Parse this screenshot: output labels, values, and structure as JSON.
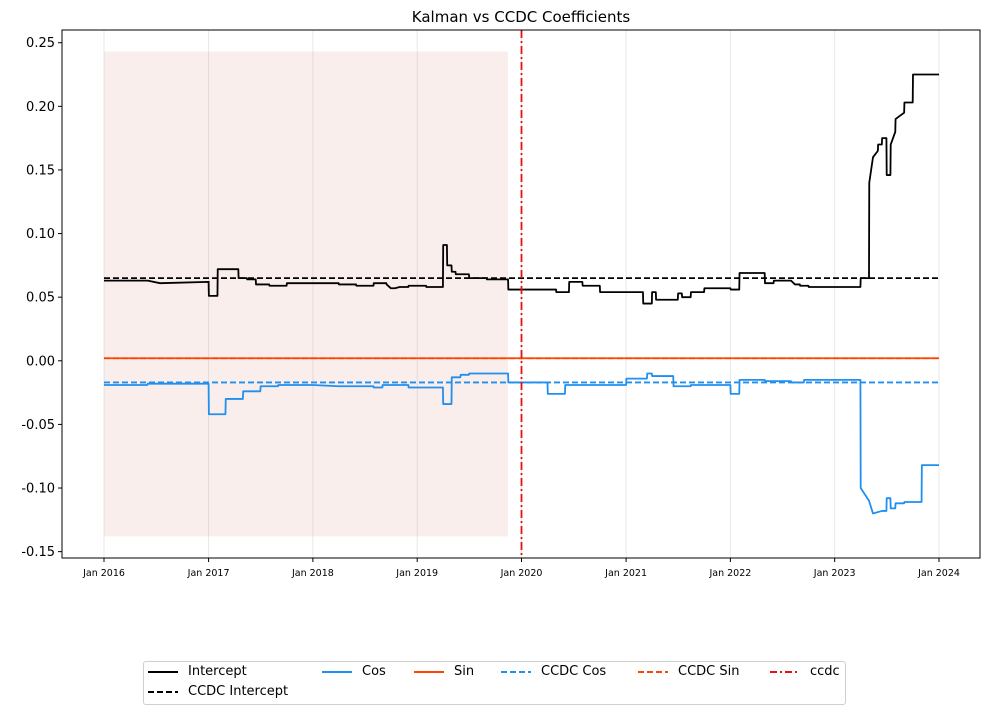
{
  "chart_data": {
    "type": "line",
    "title": "Kalman vs CCDC Coefficients",
    "xlabel": "",
    "ylabel": "",
    "xlim": [
      "2016-01-01",
      "2024-01-01"
    ],
    "ylim": [
      -0.155,
      0.26
    ],
    "x_ticks": [
      "Jan 2016",
      "Jan 2017",
      "Jan 2018",
      "Jan 2019",
      "Jan 2020",
      "Jan 2021",
      "Jan 2022",
      "Jan 2023",
      "Jan 2024"
    ],
    "y_ticks": [
      "-0.15",
      "-0.10",
      "-0.05",
      "0.00",
      "0.05",
      "0.10",
      "0.15",
      "0.20",
      "0.25"
    ],
    "grid": "vertical",
    "shaded_region": {
      "x": [
        "2016-01-01",
        "2019-11-15"
      ],
      "y": [
        -0.138,
        0.243
      ],
      "color": "#f9eeeb"
    },
    "vertical_line": {
      "name": "ccdc",
      "x": "2020-01-01",
      "color": "#e81010",
      "style": "dash-dot"
    },
    "series": [
      {
        "name": "Intercept",
        "color": "#000000",
        "style": "solid",
        "x": [
          "2016-01-01",
          "2016-02-01",
          "2016-02-02",
          "2016-06-01",
          "2016-06-02",
          "2016-07-15",
          "2016-07-16",
          "2017-01-01",
          "2017-01-02",
          "2017-01-01",
          "2017-01-02",
          "2017-02-01",
          "2017-02-02",
          "2017-04-15",
          "2017-04-16",
          "2017-05-15",
          "2017-05-16",
          "2017-06-15",
          "2017-06-16",
          "2017-08-01",
          "2017-08-02",
          "2017-10-01",
          "2017-10-02",
          "2018-04-01",
          "2018-04-02",
          "2018-06-01",
          "2018-06-02",
          "2018-08-01",
          "2018-08-02",
          "2018-09-15",
          "2018-09-16",
          "2018-10-01",
          "2018-10-15",
          "2018-11-01",
          "2018-12-01",
          "2018-12-02",
          "2019-02-01",
          "2019-02-02",
          "2019-04-01",
          "2019-04-02",
          "2019-04-15",
          "2019-04-16",
          "2019-05-01",
          "2019-05-02",
          "2019-05-15",
          "2019-05-16",
          "2019-07-01",
          "2019-07-02",
          "2019-09-01",
          "2019-09-02",
          "2019-11-15",
          "2019-11-16",
          "2020-05-01",
          "2020-05-02",
          "2020-06-15",
          "2020-06-16",
          "2020-08-01",
          "2020-08-02",
          "2020-10-01",
          "2020-10-02",
          "2021-01-01",
          "2021-03-01",
          "2021-03-02",
          "2021-04-01",
          "2021-04-02",
          "2021-04-15",
          "2021-04-16",
          "2021-07-01",
          "2021-07-02",
          "2021-07-15",
          "2021-07-16",
          "2021-08-15",
          "2021-08-16",
          "2021-10-01",
          "2021-10-02",
          "2022-01-01",
          "2022-01-02",
          "2022-02-01",
          "2022-02-02",
          "2022-05-01",
          "2022-05-02",
          "2022-06-01",
          "2022-06-02",
          "2022-08-01",
          "2022-08-15",
          "2022-09-01",
          "2022-09-02",
          "2022-10-01",
          "2022-10-02",
          "2023-04-01",
          "2023-04-02",
          "2023-05-01",
          "2023-05-02",
          "2023-05-15",
          "2023-06-01",
          "2023-06-02",
          "2023-06-15",
          "2023-06-16",
          "2023-07-01",
          "2023-07-02",
          "2023-07-15",
          "2023-07-16",
          "2023-08-01",
          "2023-08-02",
          "2023-09-01",
          "2023-09-02",
          "2023-10-01",
          "2023-10-02",
          "2023-11-01",
          "2023-11-02",
          "2024-01-01"
        ],
        "y": [
          0.063,
          0.063,
          0.063,
          0.063,
          0.063,
          0.061,
          0.061,
          0.062,
          0.062,
          0.062,
          0.051,
          0.051,
          0.072,
          0.072,
          0.065,
          0.065,
          0.064,
          0.064,
          0.06,
          0.06,
          0.059,
          0.059,
          0.061,
          0.061,
          0.06,
          0.06,
          0.059,
          0.059,
          0.061,
          0.061,
          0.06,
          0.057,
          0.057,
          0.058,
          0.058,
          0.059,
          0.059,
          0.058,
          0.058,
          0.091,
          0.091,
          0.075,
          0.075,
          0.07,
          0.07,
          0.068,
          0.068,
          0.065,
          0.065,
          0.064,
          0.064,
          0.056,
          0.056,
          0.054,
          0.054,
          0.062,
          0.062,
          0.059,
          0.059,
          0.054,
          0.054,
          0.054,
          0.045,
          0.045,
          0.054,
          0.054,
          0.048,
          0.048,
          0.053,
          0.053,
          0.05,
          0.05,
          0.054,
          0.054,
          0.057,
          0.057,
          0.056,
          0.056,
          0.069,
          0.069,
          0.061,
          0.061,
          0.063,
          0.063,
          0.06,
          0.06,
          0.059,
          0.059,
          0.058,
          0.058,
          0.065,
          0.065,
          0.14,
          0.16,
          0.165,
          0.17,
          0.17,
          0.175,
          0.175,
          0.146,
          0.146,
          0.17,
          0.18,
          0.19,
          0.195,
          0.203,
          0.203,
          0.225,
          0.225,
          0.225,
          0.225
        ]
      },
      {
        "name": "CCDC Intercept",
        "color": "#000000",
        "style": "dashed",
        "x": [
          "2016-01-01",
          "2024-01-01"
        ],
        "y": [
          0.065,
          0.065
        ]
      },
      {
        "name": "Cos",
        "color": "#1f8ff0",
        "style": "solid",
        "x": [
          "2016-01-01",
          "2016-06-01",
          "2016-06-02",
          "2017-01-01",
          "2017-01-02",
          "2017-03-01",
          "2017-03-02",
          "2017-05-01",
          "2017-05-02",
          "2017-07-01",
          "2017-07-02",
          "2017-09-01",
          "2017-09-02",
          "2018-01-01",
          "2018-04-01",
          "2018-08-01",
          "2018-08-02",
          "2018-09-01",
          "2018-09-02",
          "2018-12-01",
          "2018-12-02",
          "2019-04-01",
          "2019-04-02",
          "2019-05-01",
          "2019-05-02",
          "2019-06-01",
          "2019-06-02",
          "2019-07-01",
          "2019-07-02",
          "2019-11-15",
          "2019-11-16",
          "2020-04-01",
          "2020-04-02",
          "2020-06-01",
          "2020-06-02",
          "2021-01-01",
          "2021-01-02",
          "2021-03-15",
          "2021-03-16",
          "2021-04-01",
          "2021-04-02",
          "2021-06-15",
          "2021-06-16",
          "2021-08-15",
          "2021-08-16",
          "2022-01-01",
          "2022-01-02",
          "2022-02-01",
          "2022-02-02",
          "2022-05-01",
          "2022-05-02",
          "2022-08-01",
          "2022-08-02",
          "2022-09-15",
          "2022-09-16",
          "2023-04-01",
          "2023-04-02",
          "2023-05-01",
          "2023-05-15",
          "2023-06-15",
          "2023-07-01",
          "2023-07-02",
          "2023-07-15",
          "2023-07-16",
          "2023-08-01",
          "2023-08-02",
          "2023-09-01",
          "2023-09-02",
          "2023-11-01",
          "2023-11-02",
          "2024-01-01"
        ],
        "y": [
          -0.019,
          -0.019,
          -0.018,
          -0.018,
          -0.042,
          -0.042,
          -0.03,
          -0.03,
          -0.024,
          -0.024,
          -0.02,
          -0.02,
          -0.019,
          -0.019,
          -0.02,
          -0.02,
          -0.021,
          -0.021,
          -0.019,
          -0.019,
          -0.021,
          -0.021,
          -0.034,
          -0.034,
          -0.013,
          -0.013,
          -0.011,
          -0.011,
          -0.01,
          -0.01,
          -0.017,
          -0.017,
          -0.026,
          -0.026,
          -0.019,
          -0.019,
          -0.014,
          -0.014,
          -0.01,
          -0.01,
          -0.012,
          -0.012,
          -0.02,
          -0.02,
          -0.019,
          -0.019,
          -0.026,
          -0.026,
          -0.015,
          -0.015,
          -0.016,
          -0.016,
          -0.017,
          -0.017,
          -0.015,
          -0.015,
          -0.1,
          -0.11,
          -0.12,
          -0.118,
          -0.118,
          -0.108,
          -0.108,
          -0.116,
          -0.116,
          -0.112,
          -0.112,
          -0.111,
          -0.111,
          -0.082,
          -0.082
        ]
      },
      {
        "name": "Sin",
        "color": "#ff4500",
        "style": "solid",
        "x": [
          "2016-01-01",
          "2024-01-01"
        ],
        "y": [
          0.002,
          0.002
        ]
      },
      {
        "name": "CCDC Cos",
        "color": "#1f8ff0",
        "style": "dashed",
        "x": [
          "2016-01-01",
          "2024-01-01"
        ],
        "y": [
          -0.017,
          -0.017
        ]
      },
      {
        "name": "CCDC Sin",
        "color": "#ff4500",
        "style": "dashed",
        "x": [
          "2016-01-01",
          "2024-01-01"
        ],
        "y": [
          0.002,
          0.002
        ]
      }
    ],
    "legend": {
      "placement": "bottom",
      "entries": [
        {
          "label": "Intercept",
          "color": "#000000",
          "style": "solid"
        },
        {
          "label": "CCDC Intercept",
          "color": "#000000",
          "style": "dashed"
        },
        {
          "label": "Cos",
          "color": "#1f8ff0",
          "style": "solid"
        },
        {
          "label": "Sin",
          "color": "#ff4500",
          "style": "solid"
        },
        {
          "label": "CCDC Cos",
          "color": "#1f8ff0",
          "style": "dashed"
        },
        {
          "label": "CCDC Sin",
          "color": "#ff4500",
          "style": "dashed"
        },
        {
          "label": "ccdc",
          "color": "#e81010",
          "style": "dash-dot"
        }
      ]
    }
  }
}
